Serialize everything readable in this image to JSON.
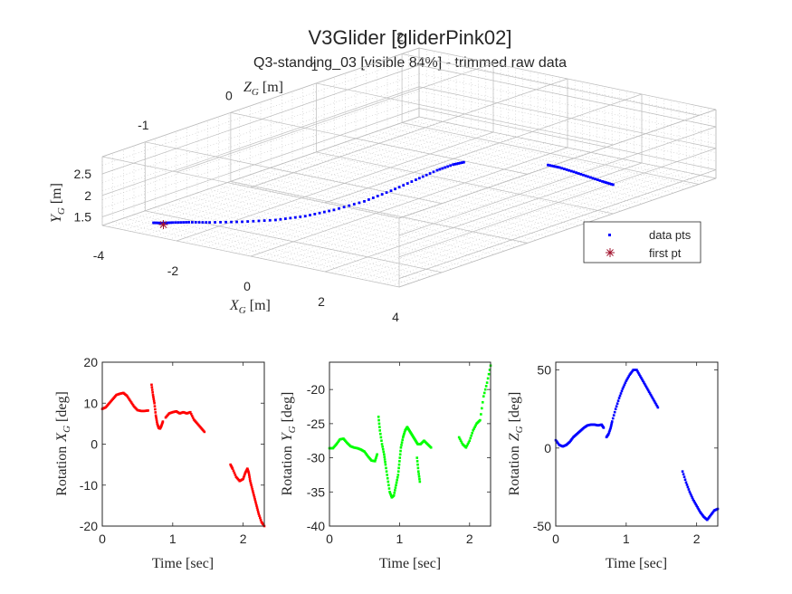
{
  "figure": {
    "title": "V3Glider [gliderPink02]",
    "subtitle": "Q3-standing_03 [visible 84%] - trimmed raw data"
  },
  "colors": {
    "x_rotation": "#ff0000",
    "y_rotation": "#00ff00",
    "z_rotation": "#0000ff",
    "trajectory": "#0000ff",
    "first_point": "#a2142f",
    "axes": "#262626"
  },
  "chart_data": [
    {
      "type": "scatter",
      "kind": "3d-trajectory",
      "xlabel": "X",
      "xlabel_sub": "G",
      "xlabel_unit": "[m]",
      "ylabel": "Y",
      "ylabel_sub": "G",
      "ylabel_unit": "[m]",
      "zlabel": "Z",
      "zlabel_sub": "G",
      "zlabel_unit": "[m]",
      "xlim": [
        -4,
        4
      ],
      "ylim": [
        1.3,
        2.9
      ],
      "zlim": [
        -1.5,
        2.2
      ],
      "x_ticks": [
        -4,
        -2,
        0,
        2,
        4
      ],
      "y_ticks": [
        1.5,
        2,
        2.5
      ],
      "y_tick_labels": [
        "1.5",
        "2",
        "2.5"
      ],
      "z_ticks": [
        -1,
        0,
        1,
        2
      ],
      "grid": true,
      "legend_position": "right",
      "legend": [
        {
          "label": "data pts",
          "marker": "dot",
          "color": "#0000ff"
        },
        {
          "label": "first pt",
          "marker": "asterisk",
          "color": "#a2142f"
        }
      ],
      "first_pt": {
        "x": -2.7,
        "y": 1.45,
        "z": -1.35
      },
      "series": [
        {
          "points": [
            [
              -2.85,
              1.5,
              -1.4
            ],
            [
              -2.7,
              1.5,
              -1.37
            ],
            [
              -2.5,
              1.52,
              -1.33
            ],
            [
              -2.2,
              1.54,
              -1.27
            ],
            [
              -1.8,
              1.56,
              -1.2
            ],
            [
              -1.2,
              1.6,
              -1.08
            ],
            [
              -0.6,
              1.66,
              -0.95
            ],
            [
              -0.1,
              1.75,
              -0.82
            ],
            [
              0.35,
              1.88,
              -0.68
            ],
            [
              0.8,
              2.05,
              -0.52
            ],
            [
              1.15,
              2.25,
              -0.36
            ],
            [
              1.45,
              2.45,
              -0.2
            ],
            [
              1.7,
              2.62,
              -0.06
            ],
            [
              1.9,
              2.72,
              0.04
            ],
            [
              2.05,
              2.76,
              0.1
            ]
          ]
        },
        {
          "points": [
            [
              3.05,
              2.5,
              0.65
            ],
            [
              3.2,
              2.42,
              0.72
            ],
            [
              3.4,
              2.3,
              0.8
            ],
            [
              3.6,
              2.17,
              0.88
            ],
            [
              3.8,
              2.04,
              0.96
            ],
            [
              3.95,
              1.95,
              1.02
            ]
          ]
        }
      ]
    },
    {
      "type": "scatter",
      "xlabel": "Time [sec]",
      "ylabel": "Rotation",
      "ylabel_sub": "G",
      "ylabel_letter": "X",
      "ylabel_unit": "[deg]",
      "xlim": [
        0,
        2.3
      ],
      "ylim": [
        -20,
        20
      ],
      "x_ticks": [
        0,
        1,
        2
      ],
      "y_ticks": [
        -20,
        -10,
        0,
        10,
        20
      ],
      "series": [
        {
          "segments": [
            [
              [
                0,
                8.6
              ],
              [
                0.05,
                9
              ],
              [
                0.1,
                10
              ],
              [
                0.15,
                11
              ],
              [
                0.2,
                12
              ],
              [
                0.25,
                12.3
              ],
              [
                0.3,
                12.5
              ],
              [
                0.35,
                11.8
              ],
              [
                0.4,
                10.5
              ],
              [
                0.45,
                9.2
              ],
              [
                0.5,
                8.3
              ],
              [
                0.55,
                8.1
              ],
              [
                0.6,
                8.1
              ],
              [
                0.65,
                8.2
              ]
            ],
            [
              [
                0.7,
                14.5
              ],
              [
                0.72,
                12
              ],
              [
                0.74,
                10
              ],
              [
                0.76,
                7
              ],
              [
                0.78,
                5
              ],
              [
                0.8,
                4
              ],
              [
                0.82,
                3.8
              ],
              [
                0.84,
                4.5
              ],
              [
                0.86,
                5.5
              ]
            ],
            [
              [
                0.9,
                6.5
              ],
              [
                0.95,
                7.5
              ],
              [
                1.0,
                7.8
              ],
              [
                1.05,
                8
              ],
              [
                1.1,
                7.5
              ],
              [
                1.15,
                7.8
              ],
              [
                1.2,
                7.5
              ],
              [
                1.25,
                7.8
              ],
              [
                1.3,
                6
              ],
              [
                1.35,
                5
              ],
              [
                1.4,
                4
              ],
              [
                1.45,
                3
              ]
            ],
            [
              [
                1.82,
                -5
              ],
              [
                1.85,
                -6
              ],
              [
                1.9,
                -8
              ],
              [
                1.95,
                -9
              ],
              [
                2.0,
                -8.5
              ],
              [
                2.03,
                -7
              ],
              [
                2.06,
                -6
              ],
              [
                2.08,
                -7
              ],
              [
                2.1,
                -9
              ],
              [
                2.13,
                -11
              ],
              [
                2.16,
                -13
              ],
              [
                2.19,
                -15
              ],
              [
                2.22,
                -17
              ],
              [
                2.26,
                -19
              ],
              [
                2.3,
                -20
              ]
            ]
          ]
        }
      ]
    },
    {
      "type": "scatter",
      "xlabel": "Time [sec]",
      "ylabel": "Rotation",
      "ylabel_sub": "G",
      "ylabel_letter": "Y",
      "ylabel_unit": "[deg]",
      "xlim": [
        0,
        2.3
      ],
      "ylim": [
        -40,
        -16
      ],
      "x_ticks": [
        0,
        1,
        2
      ],
      "y_ticks": [
        -40,
        -35,
        -30,
        -25,
        -20
      ],
      "series": [
        {
          "segments": [
            [
              [
                0,
                -28.6
              ],
              [
                0.05,
                -28.6
              ],
              [
                0.1,
                -28
              ],
              [
                0.15,
                -27.3
              ],
              [
                0.2,
                -27.2
              ],
              [
                0.25,
                -27.8
              ],
              [
                0.3,
                -28.3
              ],
              [
                0.35,
                -28.5
              ],
              [
                0.4,
                -28.6
              ],
              [
                0.45,
                -28.8
              ],
              [
                0.5,
                -29.1
              ],
              [
                0.55,
                -29.8
              ],
              [
                0.6,
                -30.4
              ],
              [
                0.65,
                -30.5
              ],
              [
                0.68,
                -29.5
              ]
            ],
            [
              [
                0.7,
                -24
              ],
              [
                0.72,
                -26
              ],
              [
                0.75,
                -28
              ],
              [
                0.78,
                -29.5
              ],
              [
                0.8,
                -31
              ],
              [
                0.83,
                -33
              ],
              [
                0.86,
                -35
              ],
              [
                0.89,
                -35.8
              ],
              [
                0.92,
                -35.5
              ],
              [
                0.95,
                -34
              ],
              [
                0.98,
                -32.5
              ],
              [
                1.0,
                -30.5
              ],
              [
                1.02,
                -28.5
              ],
              [
                1.05,
                -27
              ],
              [
                1.08,
                -26
              ],
              [
                1.11,
                -25.5
              ],
              [
                1.14,
                -26
              ],
              [
                1.17,
                -26.5
              ],
              [
                1.2,
                -27
              ],
              [
                1.23,
                -27.5
              ],
              [
                1.26,
                -28
              ],
              [
                1.3,
                -28
              ],
              [
                1.35,
                -27.5
              ],
              [
                1.4,
                -28
              ],
              [
                1.45,
                -28.5
              ]
            ],
            [
              [
                1.25,
                -30
              ],
              [
                1.27,
                -32
              ],
              [
                1.29,
                -33.5
              ]
            ],
            [
              [
                1.85,
                -27
              ],
              [
                1.9,
                -28
              ],
              [
                1.95,
                -28.5
              ],
              [
                2.0,
                -27.5
              ],
              [
                2.05,
                -26
              ],
              [
                2.1,
                -25
              ],
              [
                2.15,
                -24.5
              ],
              [
                2.2,
                -21
              ],
              [
                2.25,
                -19
              ],
              [
                2.3,
                -16.5
              ]
            ]
          ]
        }
      ]
    },
    {
      "type": "scatter",
      "xlabel": "Time [sec]",
      "ylabel": "Rotation",
      "ylabel_sub": "G",
      "ylabel_letter": "Z",
      "ylabel_unit": "[deg]",
      "xlim": [
        0,
        2.3
      ],
      "ylim": [
        -50,
        55
      ],
      "x_ticks": [
        0,
        1,
        2
      ],
      "y_ticks": [
        -50,
        0,
        50
      ],
      "series": [
        {
          "segments": [
            [
              [
                0,
                5
              ],
              [
                0.05,
                2
              ],
              [
                0.1,
                1
              ],
              [
                0.15,
                2
              ],
              [
                0.2,
                4
              ],
              [
                0.25,
                7
              ],
              [
                0.3,
                9
              ],
              [
                0.35,
                11
              ],
              [
                0.4,
                13
              ],
              [
                0.45,
                14.5
              ],
              [
                0.5,
                15
              ],
              [
                0.55,
                15
              ],
              [
                0.6,
                14.5
              ],
              [
                0.65,
                15
              ],
              [
                0.68,
                13
              ]
            ],
            [
              [
                0.72,
                7
              ],
              [
                0.75,
                9
              ],
              [
                0.78,
                13
              ],
              [
                0.8,
                17
              ],
              [
                0.85,
                25
              ],
              [
                0.9,
                32
              ],
              [
                0.95,
                38
              ],
              [
                1.0,
                43
              ],
              [
                1.05,
                47
              ],
              [
                1.1,
                50
              ],
              [
                1.15,
                50
              ],
              [
                1.2,
                46
              ],
              [
                1.25,
                42
              ],
              [
                1.3,
                38
              ],
              [
                1.35,
                34
              ],
              [
                1.4,
                30
              ],
              [
                1.45,
                26
              ]
            ],
            [
              [
                1.8,
                -15
              ],
              [
                1.85,
                -22
              ],
              [
                1.9,
                -28
              ],
              [
                1.95,
                -33
              ],
              [
                2.0,
                -37
              ],
              [
                2.05,
                -41
              ],
              [
                2.1,
                -44
              ],
              [
                2.15,
                -46
              ],
              [
                2.2,
                -43
              ],
              [
                2.25,
                -40
              ],
              [
                2.3,
                -39
              ]
            ]
          ]
        }
      ]
    }
  ]
}
